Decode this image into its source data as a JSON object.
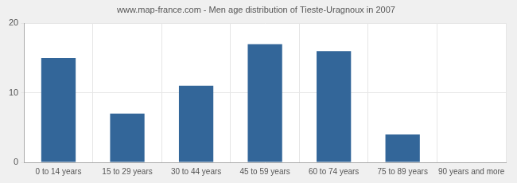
{
  "chart_data": {
    "type": "bar",
    "title": "www.map-france.com - Men age distribution of Tieste-Uragnoux in 2007",
    "categories": [
      "0 to 14 years",
      "15 to 29 years",
      "30 to 44 years",
      "45 to 59 years",
      "60 to 74 years",
      "75 to 89 years",
      "90 years and more"
    ],
    "values": [
      15,
      7,
      11,
      17,
      16,
      4,
      0
    ],
    "color": "#336699",
    "ylim": [
      0,
      20
    ],
    "yticks": [
      0,
      10,
      20
    ],
    "grid": true
  }
}
